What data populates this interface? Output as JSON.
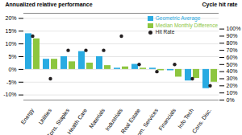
{
  "chart_data": {
    "type": "bar",
    "categories": [
      "Energy",
      "Utilities",
      "Cons. Staples",
      "Health Care",
      "Materials",
      "Industrials",
      "Real Estate",
      "Com. Services",
      "Financials",
      "Info Tech",
      "Cons. Disc."
    ],
    "series": [
      {
        "name": "Geometric Average",
        "color": "#29abe2",
        "values": [
          14.0,
          4.0,
          5.0,
          7.0,
          5.0,
          0.5,
          2.0,
          0.5,
          -0.5,
          -4.5,
          -7.5
        ]
      },
      {
        "name": "Median Monthly Difference",
        "color": "#8dc63f",
        "values": [
          12.0,
          4.0,
          3.0,
          2.5,
          1.5,
          1.0,
          0.5,
          -0.5,
          -3.0,
          -3.5,
          -5.0
        ]
      },
      {
        "name": "Hit Rate",
        "type": "scatter",
        "axis": "y2",
        "color": "#231f20",
        "marker": "circle",
        "values": [
          0.9,
          0.3,
          0.7,
          0.7,
          0.7,
          0.9,
          0.5,
          0.4,
          0.5,
          0.3,
          0.2
        ]
      }
    ],
    "ylabel": "Annualized relative performance",
    "y2label": "Cycle hit rate",
    "ylim": [
      -12,
      22
    ],
    "yticks": [
      {
        "value": -10,
        "label": "-10%"
      },
      {
        "value": -5,
        "label": "-5%"
      },
      {
        "value": 0,
        "label": "0%"
      },
      {
        "value": 5,
        "label": "5%"
      },
      {
        "value": 10,
        "label": "10%"
      },
      {
        "value": 15,
        "label": "15%"
      },
      {
        "value": 20,
        "label": "20%"
      }
    ],
    "y2lim": [
      0,
      1.222
    ],
    "y2ticks": [
      {
        "value": 0,
        "label": "0%"
      },
      {
        "value": 0.1,
        "label": "10%"
      },
      {
        "value": 0.2,
        "label": "20%"
      },
      {
        "value": 0.3,
        "label": "30%"
      },
      {
        "value": 0.4,
        "label": "40%"
      },
      {
        "value": 0.5,
        "label": "50%"
      },
      {
        "value": 0.6,
        "label": "60%"
      },
      {
        "value": 0.7,
        "label": "70%"
      },
      {
        "value": 0.8,
        "label": "80%"
      },
      {
        "value": 0.9,
        "label": "90%"
      },
      {
        "value": 1.0,
        "label": "100%"
      }
    ],
    "grid": true,
    "legend": "upper right"
  }
}
